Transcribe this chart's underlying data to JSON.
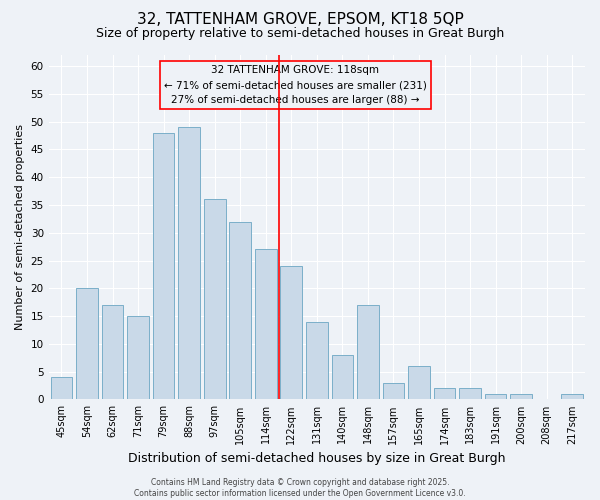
{
  "title1": "32, TATTENHAM GROVE, EPSOM, KT18 5QP",
  "title2": "Size of property relative to semi-detached houses in Great Burgh",
  "xlabel": "Distribution of semi-detached houses by size in Great Burgh",
  "ylabel": "Number of semi-detached properties",
  "categories": [
    "45sqm",
    "54sqm",
    "62sqm",
    "71sqm",
    "79sqm",
    "88sqm",
    "97sqm",
    "105sqm",
    "114sqm",
    "122sqm",
    "131sqm",
    "140sqm",
    "148sqm",
    "157sqm",
    "165sqm",
    "174sqm",
    "183sqm",
    "191sqm",
    "200sqm",
    "208sqm",
    "217sqm"
  ],
  "values": [
    4,
    20,
    17,
    15,
    48,
    49,
    36,
    32,
    27,
    24,
    14,
    8,
    17,
    3,
    6,
    2,
    2,
    1,
    1,
    0,
    1
  ],
  "bar_color": "#c9d9e8",
  "bar_edge_color": "#7aafc9",
  "annotation_text1": "32 TATTENHAM GROVE: 118sqm",
  "annotation_text2": "← 71% of semi-detached houses are smaller (231)",
  "annotation_text3": "27% of semi-detached houses are larger (88) →",
  "ylim": [
    0,
    62
  ],
  "yticks": [
    0,
    5,
    10,
    15,
    20,
    25,
    30,
    35,
    40,
    45,
    50,
    55,
    60
  ],
  "background_color": "#eef2f7",
  "grid_color": "#ffffff",
  "vline_x_index": 8.5,
  "footer_text": "Contains HM Land Registry data © Crown copyright and database right 2025.\nContains public sector information licensed under the Open Government Licence v3.0."
}
